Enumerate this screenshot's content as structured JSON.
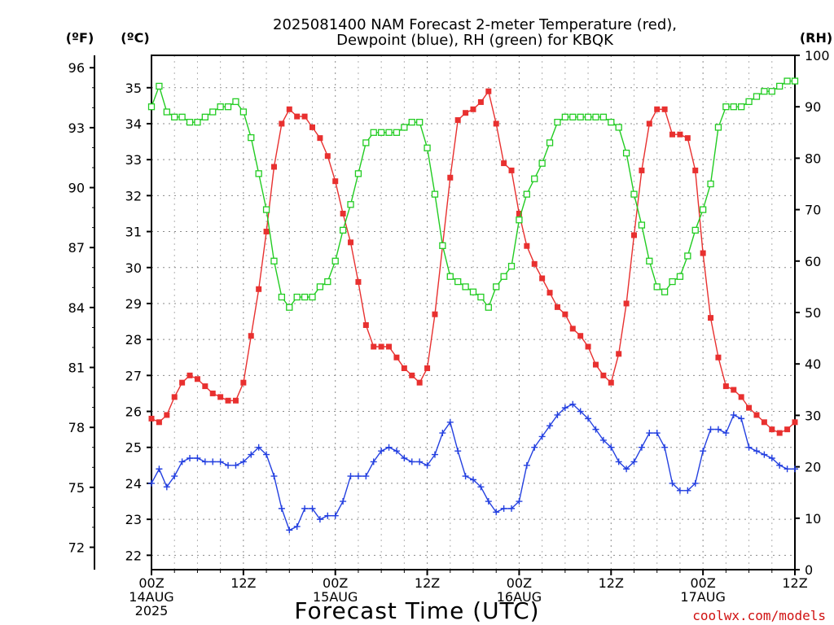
{
  "chart_data": {
    "type": "line",
    "title_line1": "2025081400 NAM Forecast 2-meter Temperature (red),",
    "title_line2": "Dewpoint (blue), RH (green) for KBQK",
    "xlabel": "Forecast Time (UTC)",
    "unit_f": "(ºF)",
    "unit_c": "(ºC)",
    "unit_rh": "(RH)",
    "credit": "coolwx.com/models",
    "x_range": [
      0,
      84
    ],
    "x_ticks": [
      {
        "x": 0,
        "lines": [
          "00Z",
          "14AUG",
          "2025"
        ]
      },
      {
        "x": 12,
        "lines": [
          "12Z"
        ]
      },
      {
        "x": 24,
        "lines": [
          "00Z",
          "15AUG"
        ]
      },
      {
        "x": 36,
        "lines": [
          "12Z"
        ]
      },
      {
        "x": 48,
        "lines": [
          "00Z",
          "16AUG"
        ]
      },
      {
        "x": 60,
        "lines": [
          "12Z"
        ]
      },
      {
        "x": 72,
        "lines": [
          "00Z",
          "17AUG"
        ]
      },
      {
        "x": 84,
        "lines": [
          "12Z"
        ]
      }
    ],
    "celsius_axis": {
      "range": [
        21.6,
        35.9
      ],
      "ticks": [
        22,
        23,
        24,
        25,
        26,
        27,
        28,
        29,
        30,
        31,
        32,
        33,
        34,
        35
      ]
    },
    "fahrenheit_axis": {
      "ticks": [
        72,
        75,
        78,
        81,
        84,
        87,
        90,
        93,
        96
      ]
    },
    "rh_axis": {
      "range": [
        0,
        100
      ],
      "ticks": [
        0,
        10,
        20,
        30,
        40,
        50,
        60,
        70,
        80,
        90,
        100
      ]
    },
    "grid": true,
    "series": [
      {
        "name": "Temperature",
        "units": "°C",
        "color": "#e8302f",
        "marker": "filled-square",
        "x": [
          0,
          1,
          2,
          3,
          4,
          5,
          6,
          7,
          8,
          9,
          10,
          11,
          12,
          13,
          14,
          15,
          16,
          17,
          18,
          19,
          20,
          21,
          22,
          23,
          24,
          25,
          26,
          27,
          28,
          29,
          30,
          31,
          32,
          33,
          34,
          35,
          36,
          37,
          38,
          39,
          40,
          41,
          42,
          43,
          44,
          45,
          46,
          47,
          48,
          49,
          50,
          51,
          52,
          53,
          54,
          55,
          56,
          57,
          58,
          59,
          60,
          61,
          62,
          63,
          64,
          65,
          66,
          67,
          68,
          69,
          70,
          71,
          72,
          73,
          74,
          75,
          76,
          77,
          78,
          79,
          80,
          81,
          82,
          83,
          84
        ],
        "values": [
          25.8,
          25.7,
          25.9,
          26.4,
          26.8,
          27.0,
          26.9,
          26.7,
          26.5,
          26.4,
          26.3,
          26.3,
          26.8,
          28.1,
          29.4,
          31.0,
          32.8,
          34.0,
          34.4,
          34.2,
          34.2,
          33.9,
          33.6,
          33.1,
          32.4,
          31.5,
          30.7,
          29.6,
          28.4,
          27.8,
          27.8,
          27.8,
          27.5,
          27.2,
          27.0,
          26.8,
          27.2,
          28.7,
          30.6,
          32.5,
          34.1,
          34.3,
          34.4,
          34.6,
          34.9,
          34.0,
          32.9,
          32.7,
          31.5,
          30.6,
          30.1,
          29.7,
          29.3,
          28.9,
          28.7,
          28.3,
          28.1,
          27.8,
          27.3,
          27.0,
          26.8,
          27.6,
          29.0,
          30.9,
          32.7,
          34.0,
          34.4,
          34.4,
          33.7,
          33.7,
          33.6,
          32.7,
          30.4,
          28.6,
          27.5,
          26.7,
          26.6,
          26.4,
          26.1,
          25.9,
          25.7,
          25.5,
          25.4,
          25.5,
          25.7
        ]
      },
      {
        "name": "Dewpoint",
        "units": "°C",
        "color": "#2440e0",
        "marker": "plus",
        "x": [
          0,
          1,
          2,
          3,
          4,
          5,
          6,
          7,
          8,
          9,
          10,
          11,
          12,
          13,
          14,
          15,
          16,
          17,
          18,
          19,
          20,
          21,
          22,
          23,
          24,
          25,
          26,
          27,
          28,
          29,
          30,
          31,
          32,
          33,
          34,
          35,
          36,
          37,
          38,
          39,
          40,
          41,
          42,
          43,
          44,
          45,
          46,
          47,
          48,
          49,
          50,
          51,
          52,
          53,
          54,
          55,
          56,
          57,
          58,
          59,
          60,
          61,
          62,
          63,
          64,
          65,
          66,
          67,
          68,
          69,
          70,
          71,
          72,
          73,
          74,
          75,
          76,
          77,
          78,
          79,
          80,
          81,
          82,
          83,
          84
        ],
        "values": [
          24.0,
          24.4,
          23.9,
          24.2,
          24.6,
          24.7,
          24.7,
          24.6,
          24.6,
          24.6,
          24.5,
          24.5,
          24.6,
          24.8,
          25.0,
          24.8,
          24.2,
          23.3,
          22.7,
          22.8,
          23.3,
          23.3,
          23.0,
          23.1,
          23.1,
          23.5,
          24.2,
          24.2,
          24.2,
          24.6,
          24.9,
          25.0,
          24.9,
          24.7,
          24.6,
          24.6,
          24.5,
          24.8,
          25.4,
          25.7,
          24.9,
          24.2,
          24.1,
          23.9,
          23.5,
          23.2,
          23.3,
          23.3,
          23.5,
          24.5,
          25.0,
          25.3,
          25.6,
          25.9,
          26.1,
          26.2,
          26.0,
          25.8,
          25.5,
          25.2,
          25.0,
          24.6,
          24.4,
          24.6,
          25.0,
          25.4,
          25.4,
          25.0,
          24.0,
          23.8,
          23.8,
          24.0,
          24.9,
          25.5,
          25.5,
          25.4,
          25.9,
          25.8,
          25.0,
          24.9,
          24.8,
          24.7,
          24.5,
          24.4,
          24.4
        ]
      },
      {
        "name": "RH",
        "units": "%",
        "color": "#22cc22",
        "marker": "open-square",
        "x": [
          0,
          1,
          2,
          3,
          4,
          5,
          6,
          7,
          8,
          9,
          10,
          11,
          12,
          13,
          14,
          15,
          16,
          17,
          18,
          19,
          20,
          21,
          22,
          23,
          24,
          25,
          26,
          27,
          28,
          29,
          30,
          31,
          32,
          33,
          34,
          35,
          36,
          37,
          38,
          39,
          40,
          41,
          42,
          43,
          44,
          45,
          46,
          47,
          48,
          49,
          50,
          51,
          52,
          53,
          54,
          55,
          56,
          57,
          58,
          59,
          60,
          61,
          62,
          63,
          64,
          65,
          66,
          67,
          68,
          69,
          70,
          71,
          72,
          73,
          74,
          75,
          76,
          77,
          78,
          79,
          80,
          81,
          82,
          83,
          84
        ],
        "values": [
          90,
          94,
          89,
          88,
          88,
          87,
          87,
          88,
          89,
          90,
          90,
          91,
          89,
          84,
          77,
          70,
          60,
          53,
          51,
          53,
          53,
          53,
          55,
          56,
          60,
          66,
          71,
          77,
          83,
          85,
          85,
          85,
          85,
          86,
          87,
          87,
          82,
          73,
          63,
          57,
          56,
          55,
          54,
          53,
          51,
          55,
          57,
          59,
          68,
          73,
          76,
          79,
          83,
          87,
          88,
          88,
          88,
          88,
          88,
          88,
          87,
          86,
          81,
          73,
          67,
          60,
          55,
          54,
          56,
          57,
          61,
          66,
          70,
          75,
          86,
          90,
          90,
          90,
          91,
          92,
          93,
          93,
          94,
          95,
          95
        ]
      }
    ]
  }
}
